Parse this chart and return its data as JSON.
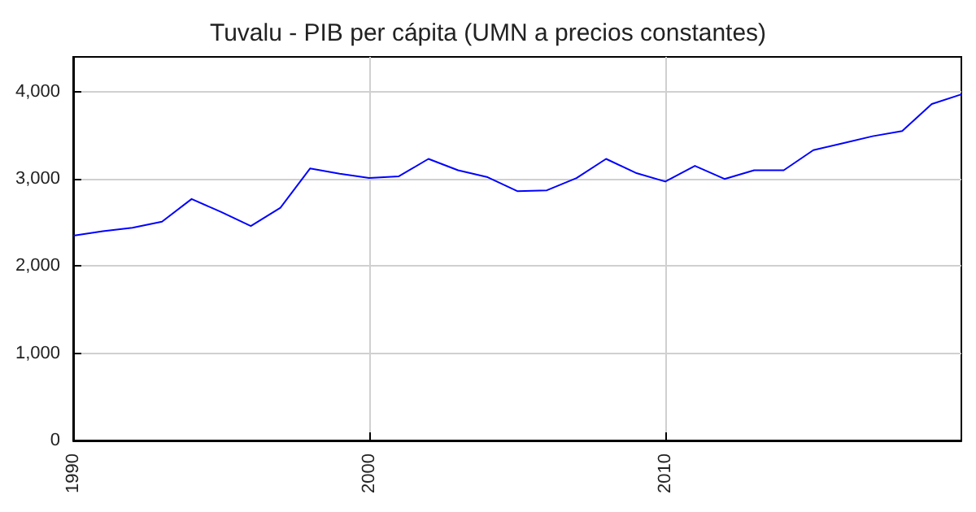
{
  "chart_data": {
    "type": "line",
    "title": "Tuvalu - PIB per cápita (UMN a precios constantes)",
    "x": [
      1990,
      1991,
      1992,
      1993,
      1994,
      1995,
      1996,
      1997,
      1998,
      1999,
      2000,
      2001,
      2002,
      2003,
      2004,
      2005,
      2006,
      2007,
      2008,
      2009,
      2010,
      2011,
      2012,
      2013,
      2014,
      2015,
      2016,
      2017,
      2018,
      2019,
      2020
    ],
    "series": [
      {
        "color": "#0000ff",
        "values": [
          2350,
          2400,
          2440,
          2510,
          2770,
          2620,
          2460,
          2670,
          3120,
          3060,
          3010,
          3030,
          3230,
          3100,
          3020,
          2860,
          2870,
          3010,
          3230,
          3070,
          2970,
          3150,
          3000,
          3100,
          3100,
          3330,
          3410,
          3490,
          3550,
          3860,
          3970
        ]
      }
    ],
    "xlim": [
      1990,
      2020
    ],
    "xticks": [
      1990,
      2000,
      2010
    ],
    "ylim": [
      0,
      4400
    ],
    "yticks": [
      {
        "value": 0,
        "label": "0"
      },
      {
        "value": 1000,
        "label": "1,000"
      },
      {
        "value": 2000,
        "label": "2,000"
      },
      {
        "value": 3000,
        "label": "3,000"
      },
      {
        "value": 4000,
        "label": "4,000"
      }
    ],
    "grid": true,
    "marker": "none",
    "line_style": "solid"
  }
}
